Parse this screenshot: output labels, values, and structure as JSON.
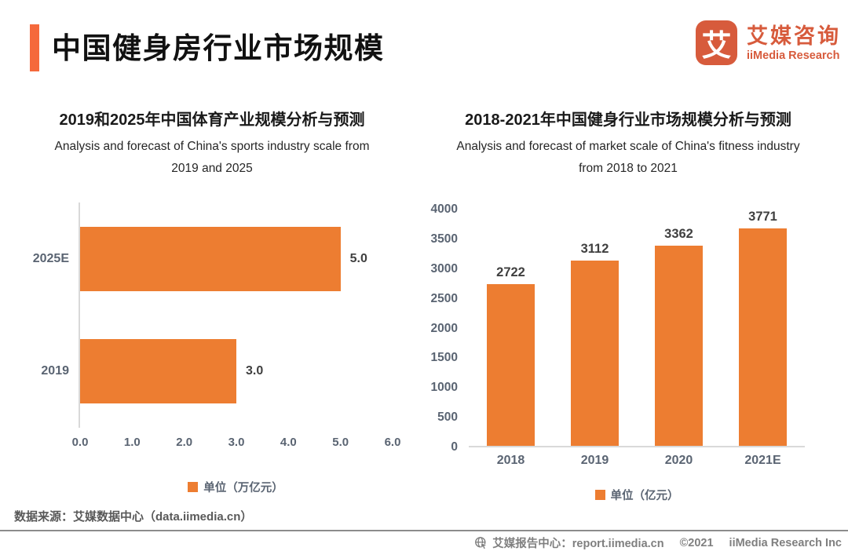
{
  "colors": {
    "accent": "#F5693C",
    "brand": "#D75B3C",
    "bar": "#ED7D31",
    "axis_label": "#5A6472",
    "value_label": "#3F3F3F",
    "source_text": "#595959",
    "footer_text": "#7F7F7F",
    "divider": "#8C8C8C"
  },
  "header": {
    "title": "中国健身房行业市场规模",
    "logo": {
      "glyph": "艾",
      "name_cn": "艾媒咨询",
      "name_en": "iiMedia Research"
    }
  },
  "charts": {
    "left": {
      "title": "2019和2025年中国体育产业规模分析与预测",
      "subtitle_lines": [
        "Analysis and forecast of China's sports industry scale from",
        "2019 and 2025"
      ]
    },
    "right": {
      "title": "2018-2021年中国健身行业市场规模分析与预测",
      "subtitle_lines": [
        "Analysis and forecast of market scale of China's fitness industry",
        "from 2018 to 2021"
      ]
    }
  },
  "chart_data": [
    {
      "type": "bar",
      "orientation": "horizontal",
      "title": "2019和2025年中国体育产业规模分析与预测",
      "subtitle": "Analysis and forecast of China's sports industry scale from 2019 and 2025",
      "categories": [
        "2025E",
        "2019"
      ],
      "values": [
        5.0,
        3.0
      ],
      "value_labels": [
        "5.0",
        "3.0"
      ],
      "x_ticks": [
        "0.0",
        "1.0",
        "2.0",
        "3.0",
        "4.0",
        "5.0",
        "6.0"
      ],
      "xlim": [
        0,
        6
      ],
      "unit_legend": "单位（万亿元）",
      "bar_color": "#ED7D31",
      "grid": false,
      "legend_position": "bottom"
    },
    {
      "type": "bar",
      "orientation": "vertical",
      "title": "2018-2021年中国健身行业市场规模分析与预测",
      "subtitle": "Analysis and forecast of market scale of China's fitness industry from 2018 to 2021",
      "categories": [
        "2018",
        "2019",
        "2020",
        "2021E"
      ],
      "values": [
        2722,
        3112,
        3362,
        3771
      ],
      "value_labels": [
        "2722",
        "3112",
        "3362",
        "3771"
      ],
      "y_ticks": [
        4000,
        3500,
        3000,
        2500,
        2000,
        1500,
        1000,
        500,
        0
      ],
      "ylim": [
        0,
        4000
      ],
      "unit_legend": "单位（亿元）",
      "bar_color": "#ED7D31",
      "grid": false,
      "legend_position": "bottom"
    }
  ],
  "footer": {
    "source": "数据来源：艾媒数据中心（data.iimedia.cn）",
    "report_center": "艾媒报告中心：report.iimedia.cn",
    "copyright": "©2021",
    "company": "iiMedia Research Inc"
  }
}
